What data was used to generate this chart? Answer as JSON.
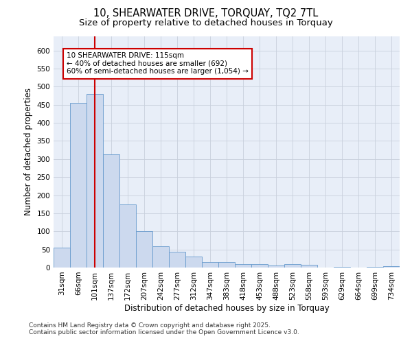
{
  "title": "10, SHEARWATER DRIVE, TORQUAY, TQ2 7TL",
  "subtitle": "Size of property relative to detached houses in Torquay",
  "xlabel": "Distribution of detached houses by size in Torquay",
  "ylabel": "Number of detached properties",
  "categories": [
    "31sqm",
    "66sqm",
    "101sqm",
    "137sqm",
    "172sqm",
    "207sqm",
    "242sqm",
    "277sqm",
    "312sqm",
    "347sqm",
    "383sqm",
    "418sqm",
    "453sqm",
    "488sqm",
    "523sqm",
    "558sqm",
    "593sqm",
    "629sqm",
    "664sqm",
    "699sqm",
    "734sqm"
  ],
  "values": [
    55,
    455,
    480,
    312,
    175,
    100,
    59,
    43,
    30,
    15,
    15,
    9,
    9,
    5,
    9,
    7,
    0,
    2,
    0,
    2,
    4
  ],
  "bar_color": "#ccd9ee",
  "bar_edge_color": "#6699cc",
  "highlight_index": 2,
  "highlight_color": "#cc0000",
  "annotation_title": "10 SHEARWATER DRIVE: 115sqm",
  "annotation_line1": "← 40% of detached houses are smaller (692)",
  "annotation_line2": "60% of semi-detached houses are larger (1,054) →",
  "annotation_box_color": "#ffffff",
  "annotation_box_edge": "#cc0000",
  "ylim": [
    0,
    640
  ],
  "yticks": [
    0,
    50,
    100,
    150,
    200,
    250,
    300,
    350,
    400,
    450,
    500,
    550,
    600
  ],
  "background_color": "#ffffff",
  "plot_bg_color": "#e8eef8",
  "footer_line1": "Contains HM Land Registry data © Crown copyright and database right 2025.",
  "footer_line2": "Contains public sector information licensed under the Open Government Licence v3.0.",
  "title_fontsize": 10.5,
  "subtitle_fontsize": 9.5,
  "axis_label_fontsize": 8.5,
  "tick_fontsize": 7.5,
  "annotation_fontsize": 7.5,
  "footer_fontsize": 6.5
}
